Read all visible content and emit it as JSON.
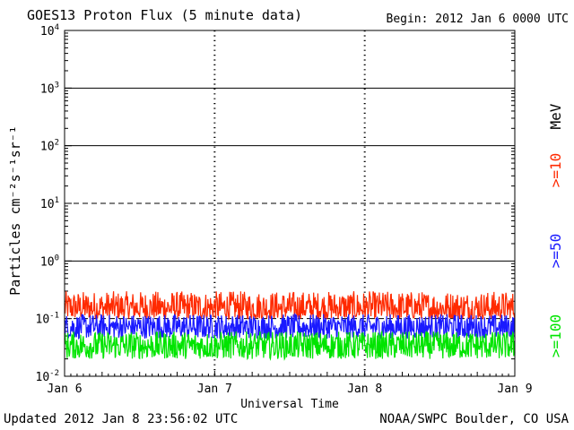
{
  "header": {
    "title": "GOES13 Proton Flux (5 minute data)",
    "begin": "Begin: 2012 Jan 6 0000 UTC"
  },
  "footer": {
    "updated": "Updated 2012 Jan  8 23:56:02 UTC",
    "credit": "NOAA/SWPC Boulder, CO USA"
  },
  "colors": {
    "ge10": "#ff2a00",
    "ge50": "#1a1aff",
    "ge100": "#00e400",
    "axis": "#000000"
  },
  "chart_data": {
    "type": "line",
    "title": "GOES13 Proton Flux (5 minute data)",
    "ylabel_base": "Particles cm",
    "ylabel_text": "Particles cm⁻²s⁻¹sr⁻¹",
    "xlabel": "Universal Time",
    "yscale": "log",
    "ylim": [
      0.01,
      10000
    ],
    "y_ticks": [
      {
        "value": 0.01,
        "label": "10",
        "exp": "-2"
      },
      {
        "value": 0.1,
        "label": "10",
        "exp": "-1"
      },
      {
        "value": 1,
        "label": "10",
        "exp": "0"
      },
      {
        "value": 10,
        "label": "10",
        "exp": "1"
      },
      {
        "value": 100,
        "label": "10",
        "exp": "2"
      },
      {
        "value": 1000,
        "label": "10",
        "exp": "3"
      },
      {
        "value": 10000,
        "label": "10",
        "exp": "4"
      }
    ],
    "threshold_lines": [
      {
        "value": 1000,
        "style": "solid"
      },
      {
        "value": 100,
        "style": "solid"
      },
      {
        "value": 10,
        "style": "dashed"
      },
      {
        "value": 1,
        "style": "solid"
      },
      {
        "value": 0.1,
        "style": "dashed"
      }
    ],
    "x_ticks": [
      "Jan 6",
      "Jan 7",
      "Jan 8",
      "Jan 9"
    ],
    "xlim_days": [
      0,
      3
    ],
    "unit_label": "MeV",
    "grid": "vertical dotted at day boundaries",
    "series": [
      {
        "name": ">=10",
        "color": "#ff2a00",
        "typical_range": [
          0.1,
          0.3
        ]
      },
      {
        "name": ">=50",
        "color": "#1a1aff",
        "typical_range": [
          0.045,
          0.12
        ]
      },
      {
        "name": ">=100",
        "color": "#00e400",
        "typical_range": [
          0.02,
          0.06
        ]
      }
    ]
  }
}
